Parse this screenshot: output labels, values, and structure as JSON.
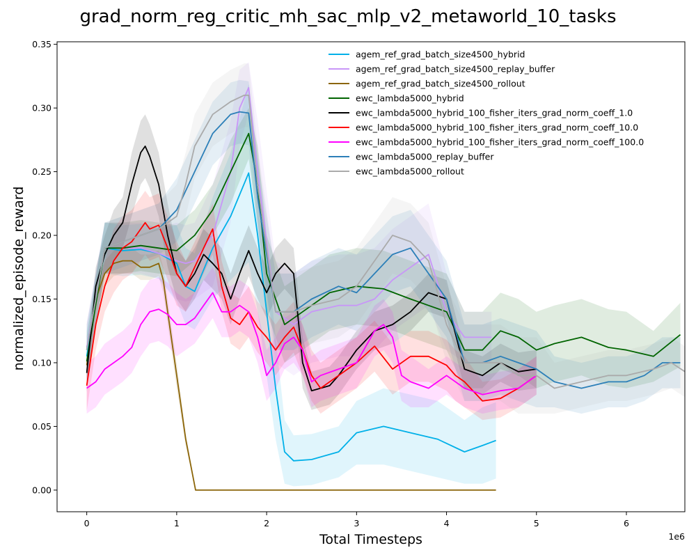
{
  "chart_data": {
    "type": "line",
    "title": "grad_norm_reg_critic_mh_sac_mlp_v2_metaworld_10_tasks",
    "xlabel": "Total Timesteps",
    "ylabel": "normalized_episode_reward",
    "x_multiplier_label": "1e6",
    "xlim": [
      -0.33,
      6.65
    ],
    "ylim": [
      -0.017,
      0.352
    ],
    "x_ticks": [
      0,
      1,
      2,
      3,
      4,
      5,
      6
    ],
    "x_tick_labels": [
      "0",
      "1",
      "2",
      "3",
      "4",
      "5",
      "6"
    ],
    "y_ticks": [
      0.0,
      0.05,
      0.1,
      0.15,
      0.2,
      0.25,
      0.3,
      0.35
    ],
    "y_tick_labels": [
      "0.00",
      "0.05",
      "0.10",
      "0.15",
      "0.20",
      "0.25",
      "0.30",
      "0.35"
    ],
    "grid": false,
    "legend_position": "upper-right",
    "series": [
      {
        "name": "agem_ref_grad_batch_size4500_hybrid",
        "color": "#00b0e8",
        "x": [
          0,
          0.2,
          0.4,
          0.6,
          0.8,
          1.0,
          1.1,
          1.2,
          1.4,
          1.6,
          1.8,
          1.9,
          2.0,
          2.1,
          2.2,
          2.3,
          2.5,
          2.8,
          3.0,
          3.3,
          3.6,
          3.9,
          4.2,
          4.4,
          4.55
        ],
        "y": [
          0.105,
          0.19,
          0.188,
          0.189,
          0.186,
          0.178,
          0.16,
          0.156,
          0.19,
          0.215,
          0.249,
          0.2,
          0.14,
          0.08,
          0.03,
          0.023,
          0.024,
          0.03,
          0.045,
          0.05,
          0.045,
          0.04,
          0.03,
          0.035,
          0.039
        ],
        "band": [
          0.02,
          0.02,
          0.02,
          0.02,
          0.02,
          0.03,
          0.03,
          0.03,
          0.04,
          0.05,
          0.07,
          0.06,
          0.05,
          0.04,
          0.025,
          0.02,
          0.02,
          0.02,
          0.025,
          0.03,
          0.03,
          0.03,
          0.025,
          0.03,
          0.03
        ]
      },
      {
        "name": "agem_ref_grad_batch_size4500_replay_buffer",
        "color": "#c896f8",
        "x": [
          0,
          0.2,
          0.4,
          0.6,
          0.8,
          1.0,
          1.1,
          1.2,
          1.4,
          1.6,
          1.7,
          1.8,
          1.9,
          2.1,
          2.3,
          2.5,
          2.8,
          3.0,
          3.2,
          3.4,
          3.6,
          3.8,
          4.0,
          4.2,
          4.4,
          4.5
        ],
        "y": [
          0.112,
          0.19,
          0.19,
          0.19,
          0.186,
          0.18,
          0.178,
          0.18,
          0.2,
          0.25,
          0.3,
          0.316,
          0.25,
          0.14,
          0.13,
          0.14,
          0.145,
          0.145,
          0.15,
          0.165,
          0.175,
          0.185,
          0.14,
          0.12,
          0.12,
          0.12
        ],
        "band": [
          0.02,
          0.02,
          0.02,
          0.02,
          0.02,
          0.03,
          0.03,
          0.03,
          0.04,
          0.04,
          0.03,
          0.02,
          0.04,
          0.04,
          0.04,
          0.04,
          0.04,
          0.04,
          0.04,
          0.04,
          0.04,
          0.04,
          0.03,
          0.02,
          0.02,
          0.02
        ]
      },
      {
        "name": "agem_ref_grad_batch_size4500_rollout",
        "color": "#8b6508",
        "x": [
          0,
          0.1,
          0.2,
          0.3,
          0.4,
          0.5,
          0.6,
          0.7,
          0.8,
          0.85,
          0.9,
          1.0,
          1.1,
          1.21,
          1.5,
          2.0,
          3.0,
          4.0,
          4.55
        ],
        "y": [
          0.098,
          0.15,
          0.17,
          0.178,
          0.18,
          0.18,
          0.175,
          0.175,
          0.178,
          0.165,
          0.14,
          0.09,
          0.04,
          0.0,
          0.0,
          0.0,
          0.0,
          0.0,
          0.0
        ],
        "band": [
          0.01,
          0.01,
          0.01,
          0.01,
          0.01,
          0.01,
          0.01,
          0.01,
          0.01,
          0.01,
          0.01,
          0.01,
          0.005,
          0.0,
          0.0,
          0.0,
          0.0,
          0.0,
          0.0
        ]
      },
      {
        "name": "ewc_lambda5000_hybrid",
        "color": "#006400",
        "x": [
          0,
          0.2,
          0.4,
          0.6,
          0.8,
          1.0,
          1.2,
          1.4,
          1.6,
          1.8,
          1.9,
          2.0,
          2.2,
          2.4,
          2.7,
          3.0,
          3.3,
          3.6,
          3.8,
          4.0,
          4.2,
          4.4,
          4.6,
          4.8,
          5.0,
          5.2,
          5.5,
          5.8,
          6.0,
          6.3,
          6.6
        ],
        "y": [
          0.101,
          0.19,
          0.19,
          0.192,
          0.19,
          0.188,
          0.2,
          0.22,
          0.25,
          0.28,
          0.24,
          0.17,
          0.13,
          0.14,
          0.155,
          0.16,
          0.158,
          0.15,
          0.145,
          0.14,
          0.11,
          0.11,
          0.125,
          0.12,
          0.11,
          0.115,
          0.12,
          0.112,
          0.11,
          0.105,
          0.122
        ],
        "band": [
          0.02,
          0.02,
          0.02,
          0.02,
          0.02,
          0.02,
          0.02,
          0.02,
          0.025,
          0.02,
          0.03,
          0.03,
          0.03,
          0.03,
          0.03,
          0.03,
          0.03,
          0.03,
          0.03,
          0.03,
          0.03,
          0.03,
          0.03,
          0.03,
          0.03,
          0.03,
          0.03,
          0.03,
          0.03,
          0.02,
          0.025
        ]
      },
      {
        "name": "ewc_lambda5000_hybrid_100_fisher_iters_grad_norm_coeff_1.0",
        "color": "#000000",
        "x": [
          0,
          0.1,
          0.2,
          0.3,
          0.4,
          0.5,
          0.6,
          0.65,
          0.7,
          0.8,
          0.9,
          1.0,
          1.1,
          1.2,
          1.3,
          1.4,
          1.5,
          1.6,
          1.7,
          1.8,
          1.9,
          2.0,
          2.1,
          2.2,
          2.3,
          2.4,
          2.5,
          2.6,
          2.7,
          2.8,
          3.0,
          3.2,
          3.4,
          3.6,
          3.8,
          4.0,
          4.2,
          4.4,
          4.6,
          4.8,
          5.0
        ],
        "y": [
          0.092,
          0.16,
          0.185,
          0.2,
          0.21,
          0.24,
          0.265,
          0.27,
          0.262,
          0.24,
          0.2,
          0.17,
          0.16,
          0.17,
          0.185,
          0.178,
          0.17,
          0.15,
          0.17,
          0.188,
          0.17,
          0.155,
          0.17,
          0.178,
          0.17,
          0.1,
          0.078,
          0.08,
          0.082,
          0.09,
          0.11,
          0.125,
          0.13,
          0.14,
          0.155,
          0.15,
          0.095,
          0.09,
          0.1,
          0.093,
          0.095
        ],
        "band": [
          0.015,
          0.015,
          0.015,
          0.02,
          0.02,
          0.025,
          0.025,
          0.025,
          0.025,
          0.025,
          0.025,
          0.02,
          0.02,
          0.02,
          0.02,
          0.02,
          0.02,
          0.02,
          0.02,
          0.02,
          0.02,
          0.02,
          0.02,
          0.02,
          0.02,
          0.02,
          0.015,
          0.015,
          0.015,
          0.015,
          0.015,
          0.015,
          0.015,
          0.015,
          0.015,
          0.015,
          0.015,
          0.015,
          0.015,
          0.015,
          0.015
        ]
      },
      {
        "name": "ewc_lambda5000_hybrid_100_fisher_iters_grad_norm_coeff_10.0",
        "color": "#ff0000",
        "x": [
          0,
          0.1,
          0.2,
          0.3,
          0.4,
          0.5,
          0.6,
          0.65,
          0.7,
          0.8,
          0.9,
          1.0,
          1.1,
          1.2,
          1.3,
          1.4,
          1.5,
          1.6,
          1.7,
          1.8,
          1.9,
          2.0,
          2.1,
          2.2,
          2.3,
          2.4,
          2.5,
          2.6,
          2.8,
          3.0,
          3.2,
          3.4,
          3.6,
          3.8,
          4.0,
          4.1,
          4.2,
          4.4,
          4.6,
          4.8,
          5.0
        ],
        "y": [
          0.082,
          0.13,
          0.16,
          0.18,
          0.19,
          0.195,
          0.205,
          0.21,
          0.205,
          0.208,
          0.19,
          0.17,
          0.16,
          0.175,
          0.19,
          0.205,
          0.16,
          0.135,
          0.13,
          0.14,
          0.128,
          0.12,
          0.11,
          0.12,
          0.128,
          0.11,
          0.09,
          0.08,
          0.09,
          0.1,
          0.113,
          0.095,
          0.105,
          0.105,
          0.098,
          0.09,
          0.085,
          0.07,
          0.072,
          0.08,
          0.09
        ],
        "band": [
          0.02,
          0.02,
          0.02,
          0.025,
          0.025,
          0.025,
          0.025,
          0.025,
          0.025,
          0.025,
          0.025,
          0.025,
          0.02,
          0.02,
          0.02,
          0.02,
          0.02,
          0.02,
          0.02,
          0.02,
          0.02,
          0.02,
          0.02,
          0.02,
          0.02,
          0.02,
          0.02,
          0.02,
          0.02,
          0.02,
          0.02,
          0.02,
          0.02,
          0.02,
          0.02,
          0.02,
          0.02,
          0.015,
          0.015,
          0.015,
          0.015
        ]
      },
      {
        "name": "ewc_lambda5000_hybrid_100_fisher_iters_grad_norm_coeff_100.0",
        "color": "#ff00ff",
        "x": [
          0,
          0.1,
          0.2,
          0.3,
          0.4,
          0.5,
          0.6,
          0.7,
          0.8,
          0.9,
          1.0,
          1.1,
          1.2,
          1.3,
          1.4,
          1.5,
          1.6,
          1.7,
          1.8,
          1.9,
          2.0,
          2.1,
          2.2,
          2.3,
          2.4,
          2.5,
          2.6,
          2.8,
          3.0,
          3.2,
          3.3,
          3.4,
          3.5,
          3.6,
          3.8,
          4.0,
          4.2,
          4.4,
          4.6,
          4.8,
          5.0
        ],
        "y": [
          0.08,
          0.085,
          0.095,
          0.1,
          0.105,
          0.112,
          0.13,
          0.14,
          0.142,
          0.138,
          0.13,
          0.13,
          0.135,
          0.145,
          0.155,
          0.14,
          0.14,
          0.145,
          0.14,
          0.12,
          0.09,
          0.1,
          0.115,
          0.12,
          0.11,
          0.085,
          0.09,
          0.095,
          0.1,
          0.125,
          0.13,
          0.12,
          0.09,
          0.085,
          0.08,
          0.09,
          0.08,
          0.075,
          0.078,
          0.08,
          0.09
        ],
        "band": [
          0.02,
          0.02,
          0.02,
          0.02,
          0.02,
          0.02,
          0.025,
          0.025,
          0.025,
          0.025,
          0.025,
          0.02,
          0.02,
          0.02,
          0.02,
          0.02,
          0.02,
          0.02,
          0.02,
          0.02,
          0.02,
          0.02,
          0.02,
          0.02,
          0.02,
          0.02,
          0.02,
          0.02,
          0.02,
          0.02,
          0.02,
          0.02,
          0.02,
          0.02,
          0.015,
          0.015,
          0.015,
          0.015,
          0.015,
          0.015,
          0.015
        ]
      },
      {
        "name": "ewc_lambda5000_replay_buffer",
        "color": "#2c7fb8",
        "x": [
          0,
          0.2,
          0.4,
          0.6,
          0.8,
          1.0,
          1.2,
          1.4,
          1.6,
          1.7,
          1.8,
          1.9,
          2.1,
          2.3,
          2.5,
          2.8,
          3.0,
          3.2,
          3.4,
          3.6,
          3.8,
          4.0,
          4.2,
          4.4,
          4.6,
          4.8,
          5.0,
          5.2,
          5.5,
          5.8,
          6.0,
          6.2,
          6.4,
          6.6
        ],
        "y": [
          0.11,
          0.19,
          0.195,
          0.2,
          0.205,
          0.22,
          0.25,
          0.28,
          0.295,
          0.297,
          0.296,
          0.23,
          0.14,
          0.14,
          0.15,
          0.16,
          0.155,
          0.17,
          0.185,
          0.19,
          0.17,
          0.15,
          0.1,
          0.1,
          0.105,
          0.1,
          0.095,
          0.085,
          0.08,
          0.085,
          0.085,
          0.09,
          0.1,
          0.1
        ],
        "band": [
          0.02,
          0.02,
          0.02,
          0.02,
          0.02,
          0.025,
          0.025,
          0.025,
          0.025,
          0.025,
          0.025,
          0.03,
          0.03,
          0.03,
          0.03,
          0.03,
          0.03,
          0.03,
          0.03,
          0.03,
          0.03,
          0.03,
          0.03,
          0.03,
          0.03,
          0.03,
          0.03,
          0.02,
          0.02,
          0.02,
          0.02,
          0.02,
          0.02,
          0.02
        ]
      },
      {
        "name": "ewc_lambda5000_rollout",
        "color": "#aaaaaa",
        "x": [
          0,
          0.2,
          0.4,
          0.6,
          0.8,
          1.0,
          1.1,
          1.2,
          1.4,
          1.6,
          1.75,
          1.8,
          1.9,
          2.1,
          2.3,
          2.5,
          2.8,
          3.0,
          3.2,
          3.4,
          3.6,
          3.8,
          4.0,
          4.2,
          4.4,
          4.6,
          4.8,
          5.0,
          5.2,
          5.5,
          5.8,
          6.0,
          6.3,
          6.5,
          6.65
        ],
        "y": [
          0.11,
          0.19,
          0.195,
          0.2,
          0.205,
          0.215,
          0.24,
          0.27,
          0.295,
          0.305,
          0.31,
          0.31,
          0.24,
          0.14,
          0.14,
          0.145,
          0.15,
          0.16,
          0.18,
          0.2,
          0.195,
          0.18,
          0.13,
          0.1,
          0.1,
          0.1,
          0.09,
          0.09,
          0.08,
          0.085,
          0.09,
          0.09,
          0.095,
          0.1,
          0.093
        ],
        "band": [
          0.02,
          0.02,
          0.02,
          0.02,
          0.02,
          0.025,
          0.025,
          0.025,
          0.025,
          0.025,
          0.025,
          0.025,
          0.03,
          0.03,
          0.03,
          0.03,
          0.03,
          0.03,
          0.03,
          0.03,
          0.03,
          0.03,
          0.03,
          0.03,
          0.03,
          0.03,
          0.03,
          0.03,
          0.02,
          0.02,
          0.02,
          0.02,
          0.02,
          0.02,
          0.02
        ]
      }
    ]
  }
}
